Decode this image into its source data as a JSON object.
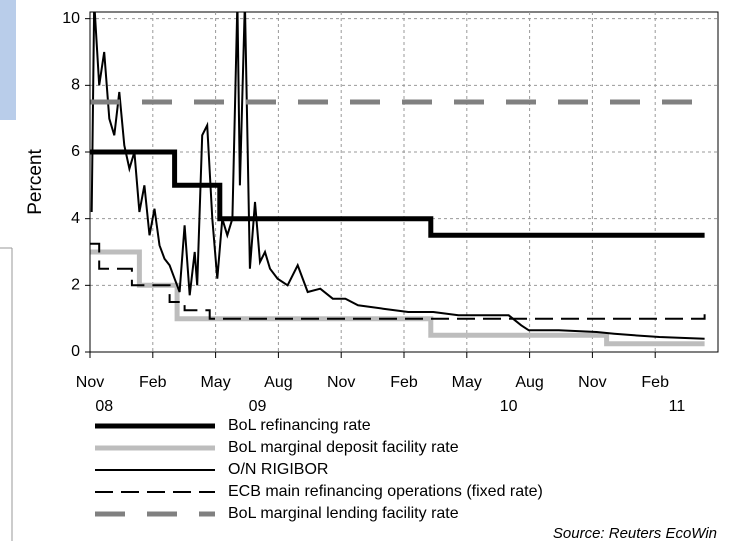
{
  "chart_data": {
    "type": "line",
    "y_label": "Percent",
    "source": "Source: Reuters EcoWin",
    "ylim": [
      0,
      10.2
    ],
    "yticks": [
      0,
      2,
      4,
      6,
      8,
      10
    ],
    "xlim": [
      2008.8333,
      2011.3333
    ],
    "xticks": [
      {
        "value": 2008.8333,
        "label": "Nov"
      },
      {
        "value": 2009.0833,
        "label": "Feb"
      },
      {
        "value": 2009.3333,
        "label": "May"
      },
      {
        "value": 2009.5833,
        "label": "Aug"
      },
      {
        "value": 2009.8333,
        "label": "Nov"
      },
      {
        "value": 2010.0833,
        "label": "Feb"
      },
      {
        "value": 2010.3333,
        "label": "May"
      },
      {
        "value": 2010.5833,
        "label": "Aug"
      },
      {
        "value": 2010.8333,
        "label": "Nov"
      },
      {
        "value": 2011.0833,
        "label": "Feb"
      }
    ],
    "year_ticks": [
      {
        "value": 2008.89,
        "label": "08"
      },
      {
        "value": 2009.5,
        "label": "09"
      },
      {
        "value": 2010.5,
        "label": "10"
      },
      {
        "value": 2011.17,
        "label": "11"
      }
    ],
    "grid": true,
    "series": [
      {
        "name": "BoL refinancing rate",
        "color": "#000000",
        "style": "thick",
        "x": [
          2008.8333,
          2009.17,
          2009.17,
          2009.35,
          2009.35,
          2010.19,
          2010.19,
          2011.28
        ],
        "values": [
          6,
          6,
          5,
          5,
          4,
          4,
          3.5,
          3.5
        ]
      },
      {
        "name": "BoL marginal deposit facility rate",
        "color": "#bdbdbd",
        "style": "thick",
        "x": [
          2008.8333,
          2009.03,
          2009.03,
          2009.18,
          2009.18,
          2010.19,
          2010.19,
          2010.89,
          2010.89,
          2011.28
        ],
        "values": [
          3,
          3,
          2,
          2,
          1,
          1,
          0.5,
          0.5,
          0.25,
          0.25
        ]
      },
      {
        "name": "O/N RIGIBOR",
        "color": "#000000",
        "style": "thin",
        "x": [
          2008.84,
          2008.85,
          2008.87,
          2008.89,
          2008.91,
          2008.93,
          2008.95,
          2008.97,
          2008.99,
          2009.01,
          2009.03,
          2009.05,
          2009.07,
          2009.09,
          2009.11,
          2009.13,
          2009.15,
          2009.17,
          2009.19,
          2009.21,
          2009.23,
          2009.25,
          2009.26,
          2009.28,
          2009.3,
          2009.32,
          2009.34,
          2009.36,
          2009.38,
          2009.4,
          2009.42,
          2009.43,
          2009.45,
          2009.47,
          2009.49,
          2009.51,
          2009.53,
          2009.55,
          2009.58,
          2009.62,
          2009.66,
          2009.7,
          2009.75,
          2009.8,
          2009.85,
          2009.9,
          2010.0,
          2010.1,
          2010.2,
          2010.3,
          2010.4,
          2010.5,
          2010.55,
          2010.58,
          2010.7,
          2010.85,
          2010.92,
          2011.0,
          2011.1,
          2011.28
        ],
        "values": [
          4.2,
          10.5,
          8,
          9,
          7,
          6.5,
          7.8,
          6.2,
          5.5,
          6,
          4.2,
          5,
          3.5,
          4.3,
          3.2,
          2.8,
          2.6,
          2.2,
          1.8,
          3.8,
          1.7,
          3,
          2,
          6.5,
          6.8,
          4,
          2.2,
          4,
          3.5,
          4,
          10.5,
          5,
          10.5,
          2.5,
          4.5,
          2.7,
          3,
          2.5,
          2.2,
          2,
          2.6,
          1.8,
          1.9,
          1.6,
          1.6,
          1.4,
          1.3,
          1.2,
          1.2,
          1.1,
          1.1,
          1.1,
          0.8,
          0.65,
          0.65,
          0.6,
          0.55,
          0.5,
          0.45,
          0.4
        ]
      },
      {
        "name": "ECB main refinancing operations (fixed rate)",
        "color": "#000000",
        "style": "dashed",
        "x": [
          2008.8333,
          2008.87,
          2008.87,
          2009.0,
          2009.0,
          2009.15,
          2009.15,
          2009.21,
          2009.21,
          2009.31,
          2009.31,
          2011.28,
          2011.28
        ],
        "values": [
          3.25,
          3.25,
          2.5,
          2.5,
          2,
          2,
          1.5,
          1.5,
          1.25,
          1.25,
          1,
          1,
          1.2
        ]
      },
      {
        "name": "BoL marginal lending facility rate",
        "color": "#808080",
        "style": "thick-dashed",
        "x": [
          2008.8333,
          2011.28
        ],
        "values": [
          7.5,
          7.5
        ]
      }
    ]
  }
}
